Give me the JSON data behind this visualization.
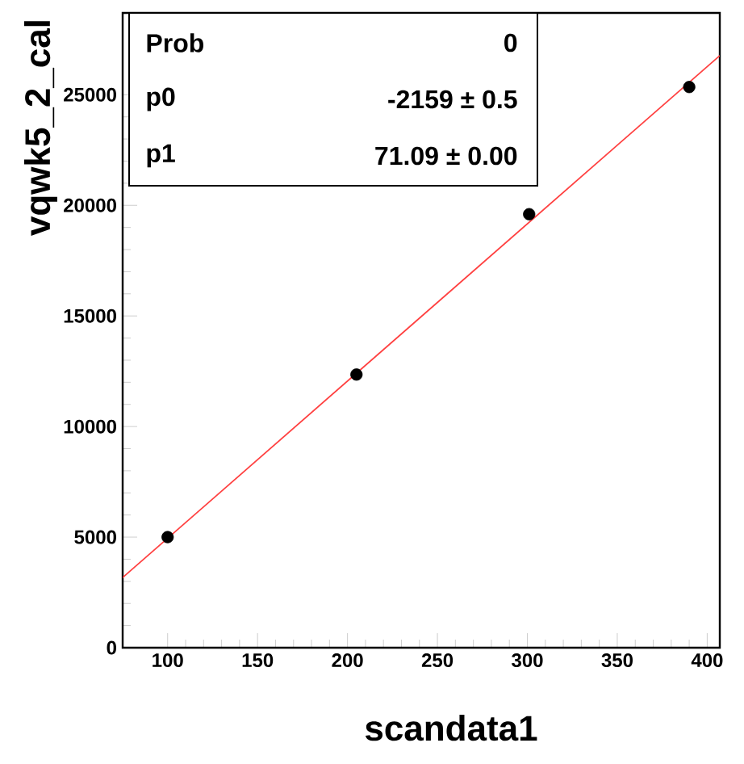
{
  "chart_data": {
    "type": "scatter",
    "xlabel": "scandata1",
    "ylabel": "vqwk5_2_cal",
    "xlim": [
      75,
      407
    ],
    "ylim": [
      0,
      28700
    ],
    "xticks": [
      100,
      150,
      200,
      250,
      300,
      350,
      400
    ],
    "yticks": [
      0,
      5000,
      10000,
      15000,
      20000,
      25000
    ],
    "annotations": [
      "Prob",
      "0",
      "p0",
      "-2159 ± 0.5",
      "p1",
      "71.09 ± 0.00"
    ],
    "series": [
      {
        "color": "#000000",
        "marker": "circle",
        "x": [
          100,
          205,
          301,
          390
        ],
        "values": [
          5000,
          12350,
          19600,
          25350
        ]
      },
      {
        "type": "line",
        "color": "#ff4040",
        "marker": "none",
        "x": [
          75,
          407
        ],
        "values": [
          3170,
          26770
        ]
      }
    ]
  }
}
